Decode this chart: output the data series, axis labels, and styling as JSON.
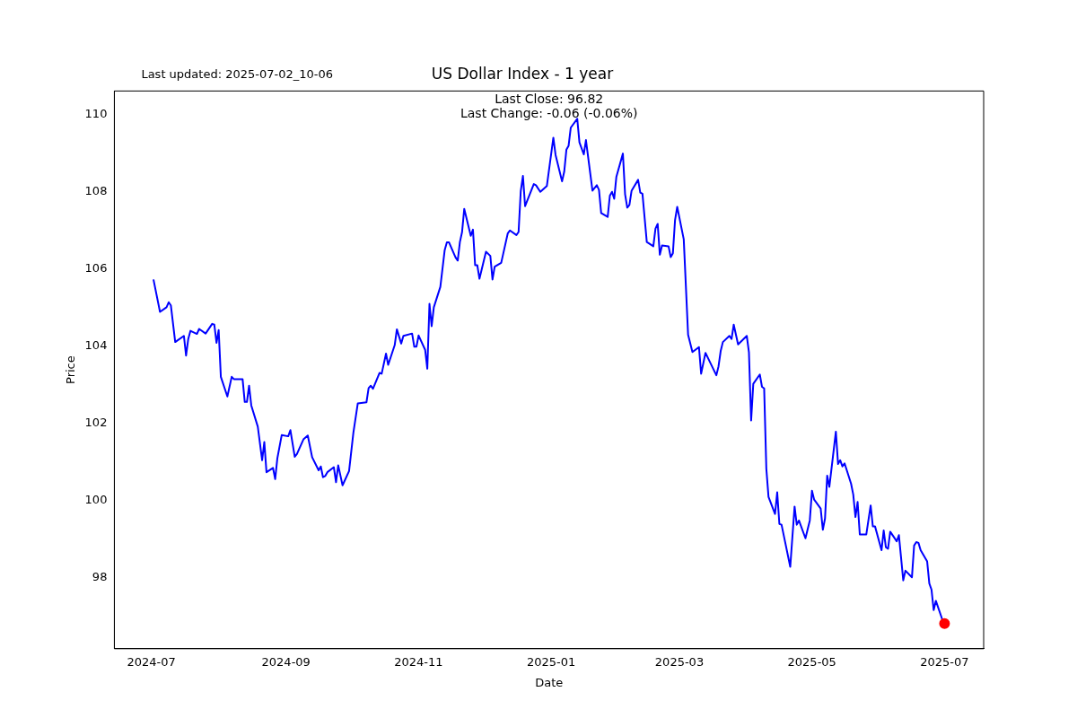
{
  "chart_data": {
    "type": "line",
    "title": "US Dollar Index - 1 year",
    "xlabel": "Date",
    "ylabel": "Price",
    "annotations": [
      "Last updated: 2025-07-02_10-06",
      "Last Close: 96.82",
      "Last Change: -0.06 (-0.06%)"
    ],
    "xlim": [
      "2024-06-14",
      "2025-07-19"
    ],
    "xticks": [
      "2024-07",
      "2024-09",
      "2024-11",
      "2025-01",
      "2025-03",
      "2025-05",
      "2025-07"
    ],
    "ylim": [
      96.17,
      110.61
    ],
    "yticks": [
      98,
      100,
      102,
      104,
      106,
      108,
      110
    ],
    "grid": false,
    "legend": false,
    "series": [
      {
        "type": "line",
        "color": "#0000ff",
        "marker": "none",
        "x": [
          "2024-07-02",
          "2024-07-05",
          "2024-07-08",
          "2024-07-09",
          "2024-07-10",
          "2024-07-12",
          "2024-07-16",
          "2024-07-17",
          "2024-07-18",
          "2024-07-19",
          "2024-07-22",
          "2024-07-23",
          "2024-07-26",
          "2024-07-29",
          "2024-07-30",
          "2024-07-31",
          "2024-08-01",
          "2024-08-02",
          "2024-08-05",
          "2024-08-07",
          "2024-08-08",
          "2024-08-12",
          "2024-08-13",
          "2024-08-14",
          "2024-08-15",
          "2024-08-16",
          "2024-08-19",
          "2024-08-21",
          "2024-08-22",
          "2024-08-23",
          "2024-08-26",
          "2024-08-27",
          "2024-08-28",
          "2024-08-30",
          "2024-09-02",
          "2024-09-03",
          "2024-09-05",
          "2024-09-06",
          "2024-09-09",
          "2024-09-11",
          "2024-09-13",
          "2024-09-16",
          "2024-09-17",
          "2024-09-18",
          "2024-09-19",
          "2024-09-20",
          "2024-09-23",
          "2024-09-24",
          "2024-09-25",
          "2024-09-27",
          "2024-09-30",
          "2024-10-02",
          "2024-10-04",
          "2024-10-08",
          "2024-10-09",
          "2024-10-10",
          "2024-10-11",
          "2024-10-14",
          "2024-10-15",
          "2024-10-17",
          "2024-10-18",
          "2024-10-21",
          "2024-10-22",
          "2024-10-24",
          "2024-10-25",
          "2024-10-29",
          "2024-10-30",
          "2024-10-31",
          "2024-11-01",
          "2024-11-04",
          "2024-11-05",
          "2024-11-06",
          "2024-11-07",
          "2024-11-08",
          "2024-11-11",
          "2024-11-13",
          "2024-11-14",
          "2024-11-15",
          "2024-11-18",
          "2024-11-19",
          "2024-11-20",
          "2024-11-21",
          "2024-11-22",
          "2024-11-25",
          "2024-11-26",
          "2024-11-27",
          "2024-11-28",
          "2024-11-29",
          "2024-12-02",
          "2024-12-04",
          "2024-12-05",
          "2024-12-06",
          "2024-12-09",
          "2024-12-12",
          "2024-12-13",
          "2024-12-16",
          "2024-12-17",
          "2024-12-18",
          "2024-12-19",
          "2024-12-20",
          "2024-12-24",
          "2024-12-25",
          "2024-12-27",
          "2024-12-30",
          "2025-01-02",
          "2025-01-03",
          "2025-01-06",
          "2025-01-07",
          "2025-01-08",
          "2025-01-09",
          "2025-01-10",
          "2025-01-13",
          "2025-01-14",
          "2025-01-16",
          "2025-01-17",
          "2025-01-20",
          "2025-01-22",
          "2025-01-23",
          "2025-01-24",
          "2025-01-27",
          "2025-01-28",
          "2025-01-29",
          "2025-01-30",
          "2025-01-31",
          "2025-02-03",
          "2025-02-04",
          "2025-02-05",
          "2025-02-06",
          "2025-02-07",
          "2025-02-10",
          "2025-02-11",
          "2025-02-12",
          "2025-02-14",
          "2025-02-17",
          "2025-02-18",
          "2025-02-19",
          "2025-02-20",
          "2025-02-21",
          "2025-02-24",
          "2025-02-25",
          "2025-02-26",
          "2025-02-27",
          "2025-02-28",
          "2025-03-03",
          "2025-03-05",
          "2025-03-07",
          "2025-03-10",
          "2025-03-11",
          "2025-03-13",
          "2025-03-18",
          "2025-03-19",
          "2025-03-20",
          "2025-03-21",
          "2025-03-24",
          "2025-03-25",
          "2025-03-26",
          "2025-03-28",
          "2025-04-01",
          "2025-04-02",
          "2025-04-03",
          "2025-04-04",
          "2025-04-07",
          "2025-04-08",
          "2025-04-09",
          "2025-04-10",
          "2025-04-11",
          "2025-04-14",
          "2025-04-15",
          "2025-04-16",
          "2025-04-17",
          "2025-04-21",
          "2025-04-23",
          "2025-04-24",
          "2025-04-25",
          "2025-04-28",
          "2025-04-30",
          "2025-05-01",
          "2025-05-02",
          "2025-05-05",
          "2025-05-06",
          "2025-05-07",
          "2025-05-08",
          "2025-05-09",
          "2025-05-12",
          "2025-05-13",
          "2025-05-14",
          "2025-05-15",
          "2025-05-16",
          "2025-05-19",
          "2025-05-20",
          "2025-05-21",
          "2025-05-22",
          "2025-05-23",
          "2025-05-26",
          "2025-05-28",
          "2025-05-29",
          "2025-05-30",
          "2025-06-02",
          "2025-06-03",
          "2025-06-04",
          "2025-06-05",
          "2025-06-06",
          "2025-06-09",
          "2025-06-10",
          "2025-06-12",
          "2025-06-13",
          "2025-06-16",
          "2025-06-17",
          "2025-06-18",
          "2025-06-19",
          "2025-06-20",
          "2025-06-23",
          "2025-06-24",
          "2025-06-25",
          "2025-06-26",
          "2025-06-27",
          "2025-06-30",
          "2025-07-01"
        ],
        "values": [
          105.73,
          104.89,
          105.01,
          105.14,
          105.06,
          104.11,
          104.27,
          103.76,
          104.19,
          104.4,
          104.32,
          104.45,
          104.33,
          104.58,
          104.56,
          104.09,
          104.42,
          103.21,
          102.7,
          103.21,
          103.15,
          103.15,
          102.56,
          102.56,
          102.98,
          102.47,
          101.92,
          101.05,
          101.52,
          100.74,
          100.85,
          100.56,
          101.1,
          101.7,
          101.67,
          101.83,
          101.14,
          101.21,
          101.59,
          101.69,
          101.13,
          100.79,
          100.89,
          100.61,
          100.64,
          100.74,
          100.87,
          100.48,
          100.92,
          100.4,
          100.77,
          101.77,
          102.52,
          102.55,
          102.92,
          102.98,
          102.9,
          103.31,
          103.29,
          103.81,
          103.52,
          104.03,
          104.44,
          104.07,
          104.27,
          104.33,
          103.99,
          103.99,
          104.28,
          103.91,
          103.42,
          105.1,
          104.52,
          105.01,
          105.54,
          106.49,
          106.69,
          106.69,
          106.3,
          106.22,
          106.7,
          106.96,
          107.56,
          106.86,
          107.02,
          106.1,
          106.1,
          105.75,
          106.45,
          106.34,
          105.73,
          106.06,
          106.16,
          106.92,
          107.0,
          106.88,
          106.96,
          108.02,
          108.41,
          107.63,
          108.2,
          108.17,
          108.0,
          108.15,
          109.4,
          108.96,
          108.27,
          108.52,
          109.09,
          109.19,
          109.66,
          109.89,
          109.28,
          108.97,
          109.34,
          108.03,
          108.17,
          108.05,
          107.45,
          107.35,
          107.9,
          108.0,
          107.82,
          108.39,
          108.99,
          107.94,
          107.59,
          107.66,
          108.03,
          108.31,
          107.98,
          107.95,
          106.7,
          106.59,
          107.05,
          107.17,
          106.37,
          106.61,
          106.59,
          106.31,
          106.41,
          107.27,
          107.61,
          106.77,
          104.3,
          103.85,
          103.98,
          103.29,
          103.83,
          103.25,
          103.48,
          103.88,
          104.11,
          104.27,
          104.19,
          104.56,
          104.05,
          104.27,
          103.84,
          102.08,
          103.03,
          103.27,
          102.95,
          102.91,
          100.83,
          100.1,
          99.66,
          100.22,
          99.4,
          99.38,
          98.29,
          99.85,
          99.38,
          99.49,
          99.03,
          99.49,
          100.26,
          100.03,
          99.8,
          99.25,
          99.54,
          100.65,
          100.36,
          101.79,
          100.95,
          101.05,
          100.89,
          100.97,
          100.44,
          100.16,
          99.58,
          99.97,
          99.13,
          99.13,
          99.88,
          99.34,
          99.34,
          98.72,
          99.23,
          98.8,
          98.76,
          99.2,
          98.95,
          99.11,
          97.94,
          98.19,
          98.02,
          98.84,
          98.93,
          98.91,
          98.72,
          98.43,
          97.86,
          97.7,
          97.17,
          97.41,
          96.92,
          96.82
        ]
      },
      {
        "type": "scatter",
        "color": "#ff0000",
        "marker": "circle",
        "x": [
          "2025-07-01"
        ],
        "values": [
          96.82
        ]
      }
    ]
  }
}
